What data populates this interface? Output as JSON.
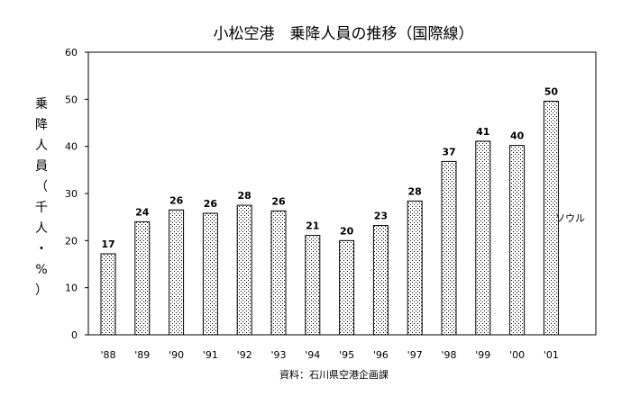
{
  "chart_data": {
    "type": "bar",
    "title": "小松空港　乗降人員の推移（国際線）",
    "ylabel": "乗降人員（千人・%）",
    "xlabel": "",
    "categories": [
      "'88",
      "'89",
      "'90",
      "'91",
      "'92",
      "'93",
      "'94",
      "'95",
      "'96",
      "'97",
      "'98",
      "'99",
      "'00",
      "'01"
    ],
    "values": [
      17,
      24,
      26,
      26,
      28,
      26,
      21,
      20,
      23,
      28,
      37,
      41,
      40,
      50
    ],
    "data_labels": [
      "17",
      "24",
      "26",
      "26",
      "28",
      "26",
      "21",
      "20",
      "23",
      "28",
      "37",
      "41",
      "40",
      "50"
    ],
    "actual_values": [
      17.2,
      24,
      26.5,
      25.8,
      27.5,
      26.3,
      21.1,
      20,
      23.2,
      28.4,
      36.8,
      41.1,
      40.2,
      49.6
    ],
    "ylim": [
      0,
      60
    ],
    "yticks": [
      "0",
      "10",
      "20",
      "30",
      "40",
      "50",
      "60"
    ],
    "ytick_values": [
      0,
      10,
      20,
      30,
      40,
      50,
      60
    ],
    "grid": false,
    "legend": null,
    "bar_fill": "dotted",
    "annotation": "ソウル",
    "source": "資料：石川県空港企画課"
  },
  "colors": {
    "ink": "#000000",
    "background": "#ffffff"
  }
}
